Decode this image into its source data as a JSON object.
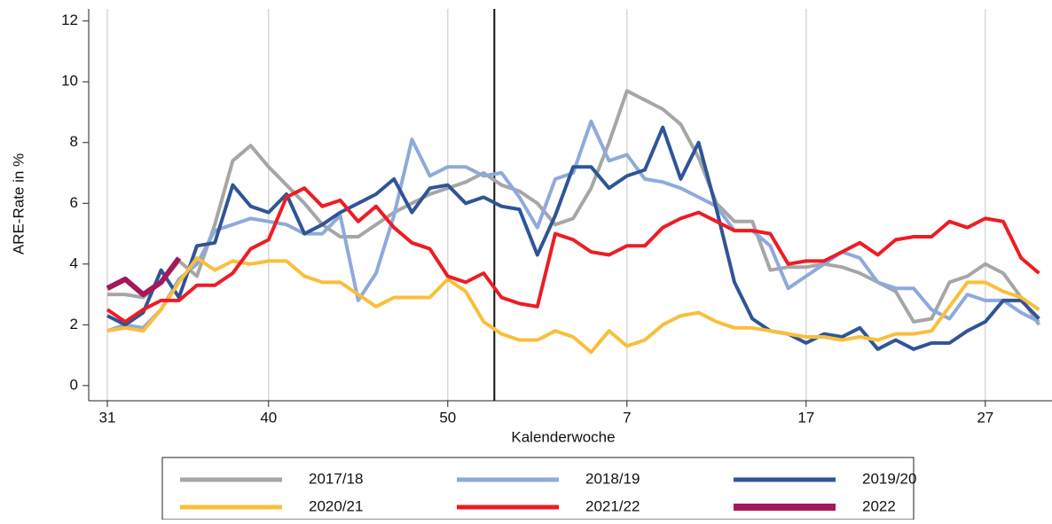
{
  "chart_data": {
    "type": "line",
    "xlabel": "Kalenderwoche",
    "ylabel": "ARE-Rate in %",
    "categories": [
      31,
      null,
      null,
      null,
      null,
      null,
      null,
      null,
      null,
      40,
      null,
      null,
      null,
      null,
      null,
      null,
      null,
      null,
      null,
      50,
      null,
      null,
      null,
      null,
      null,
      null,
      null,
      null,
      null,
      7,
      null,
      null,
      null,
      null,
      null,
      null,
      null,
      null,
      null,
      17,
      null,
      null,
      null,
      null,
      null,
      null,
      null,
      null,
      null,
      27,
      null,
      null,
      null
    ],
    "ylim": [
      -0.5,
      12.4
    ],
    "yticks": [
      0,
      2,
      4,
      6,
      8,
      10,
      12
    ],
    "grid": true,
    "series": [
      {
        "name": "2017/18",
        "color": "#a6a6a6",
        "values": [
          3.0,
          3.0,
          2.9,
          3.4,
          4.1,
          3.6,
          5.3,
          7.4,
          7.9,
          7.2,
          6.6,
          6.0,
          5.3,
          4.9,
          4.9,
          5.3,
          5.7,
          6.0,
          6.3,
          6.5,
          6.7,
          7.0,
          6.6,
          6.4,
          6.0,
          5.3,
          5.5,
          6.5,
          8.0,
          9.7,
          9.4,
          9.1,
          8.6,
          7.5,
          6.0,
          5.4,
          5.4,
          3.8,
          3.9,
          3.9,
          4.0,
          3.9,
          3.7,
          3.4,
          3.1,
          2.1,
          2.2,
          3.4,
          3.6,
          4.0,
          3.7,
          2.9,
          2.0
        ]
      },
      {
        "name": "2018/19",
        "color": "#8eaadb",
        "values": [
          1.8,
          2.0,
          1.9,
          2.5,
          3.5,
          4.0,
          5.1,
          5.3,
          5.5,
          5.4,
          5.3,
          5.0,
          5.0,
          5.6,
          2.8,
          3.7,
          5.6,
          8.1,
          6.9,
          7.2,
          7.2,
          6.9,
          7.0,
          6.2,
          5.2,
          6.8,
          7.0,
          8.7,
          7.4,
          7.6,
          6.8,
          6.7,
          6.5,
          6.2,
          5.9,
          5.1,
          5.1,
          4.6,
          3.2,
          3.6,
          4.0,
          4.4,
          4.2,
          3.4,
          3.2,
          3.2,
          2.5,
          2.2,
          3.0,
          2.8,
          2.8,
          2.4,
          2.1
        ]
      },
      {
        "name": "2019/20",
        "color": "#2f5597",
        "values": [
          2.3,
          2.0,
          2.4,
          3.8,
          2.9,
          4.6,
          4.7,
          6.6,
          5.9,
          5.7,
          6.3,
          5.0,
          5.3,
          5.7,
          6.0,
          6.3,
          6.8,
          5.7,
          6.5,
          6.6,
          6.0,
          6.2,
          5.9,
          5.8,
          4.3,
          5.6,
          7.2,
          7.2,
          6.5,
          6.9,
          7.1,
          8.5,
          6.8,
          8.0,
          5.8,
          3.4,
          2.2,
          1.8,
          1.7,
          1.4,
          1.7,
          1.6,
          1.9,
          1.2,
          1.5,
          1.2,
          1.4,
          1.4,
          1.8,
          2.1,
          2.8,
          2.8,
          2.2
        ]
      },
      {
        "name": "2020/21",
        "color": "#f9bf3b",
        "values": [
          1.8,
          1.9,
          1.8,
          2.5,
          3.4,
          4.2,
          3.8,
          4.1,
          4.0,
          4.1,
          4.1,
          3.6,
          3.4,
          3.4,
          3.0,
          2.6,
          2.9,
          2.9,
          2.9,
          3.5,
          3.1,
          2.1,
          1.7,
          1.5,
          1.5,
          1.8,
          1.6,
          1.1,
          1.8,
          1.3,
          1.5,
          2.0,
          2.3,
          2.4,
          2.1,
          1.9,
          1.9,
          1.8,
          1.7,
          1.6,
          1.6,
          1.5,
          1.6,
          1.5,
          1.7,
          1.7,
          1.8,
          2.6,
          3.4,
          3.4,
          3.1,
          2.9,
          2.5
        ]
      },
      {
        "name": "2021/22",
        "color": "#ee1c25",
        "values": [
          2.5,
          2.1,
          2.5,
          2.8,
          2.8,
          3.3,
          3.3,
          3.7,
          4.5,
          4.8,
          6.2,
          6.5,
          5.9,
          6.1,
          5.4,
          5.9,
          5.2,
          4.7,
          4.5,
          3.6,
          3.4,
          3.7,
          2.9,
          2.7,
          2.6,
          5.0,
          4.8,
          4.4,
          4.3,
          4.6,
          4.6,
          5.2,
          5.5,
          5.7,
          5.4,
          5.1,
          5.1,
          5.0,
          4.0,
          4.1,
          4.1,
          4.4,
          4.7,
          4.3,
          4.8,
          4.9,
          4.9,
          5.4,
          5.2,
          5.5,
          5.4,
          4.2,
          3.7
        ]
      },
      {
        "name": "2022",
        "color": "#a3195b",
        "values": [
          3.2,
          3.5,
          3.0,
          3.4,
          4.2,
          null,
          null,
          null,
          null,
          null,
          null,
          null,
          null,
          null,
          null,
          null,
          null,
          null,
          null,
          null,
          null,
          null,
          null,
          null,
          null,
          null,
          null,
          null,
          null,
          null,
          null,
          null,
          null,
          null,
          null,
          null,
          null,
          null,
          null,
          null,
          null,
          null,
          null,
          null,
          null,
          null,
          null,
          null,
          null,
          null,
          null,
          null,
          null
        ]
      }
    ]
  }
}
